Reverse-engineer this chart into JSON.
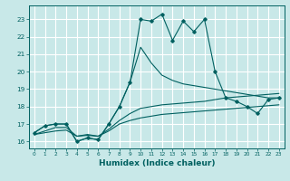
{
  "title": "",
  "xlabel": "Humidex (Indice chaleur)",
  "bg_color": "#c8e8e8",
  "grid_color": "#ffffff",
  "line_color": "#006060",
  "x_data": [
    0,
    1,
    2,
    3,
    4,
    5,
    6,
    7,
    8,
    9,
    10,
    11,
    12,
    13,
    14,
    15,
    16,
    17,
    18,
    19,
    20,
    21,
    22,
    23
  ],
  "main_series": [
    16.5,
    16.9,
    17.0,
    17.0,
    16.0,
    16.2,
    16.1,
    17.0,
    18.0,
    19.4,
    23.0,
    22.9,
    23.3,
    21.8,
    22.9,
    22.3,
    23.0,
    20.0,
    18.5,
    18.3,
    18.0,
    17.6,
    18.4,
    18.5
  ],
  "upper_env": [
    16.5,
    16.9,
    17.0,
    17.0,
    16.0,
    16.2,
    16.1,
    17.0,
    18.0,
    19.4,
    21.4,
    20.5,
    19.8,
    19.5,
    19.3,
    19.2,
    19.1,
    19.0,
    18.9,
    18.8,
    18.7,
    18.6,
    18.5,
    18.5
  ],
  "mid_env": [
    16.4,
    16.6,
    16.8,
    16.8,
    16.3,
    16.4,
    16.3,
    16.7,
    17.2,
    17.6,
    17.9,
    18.0,
    18.1,
    18.15,
    18.2,
    18.25,
    18.3,
    18.4,
    18.5,
    18.55,
    18.6,
    18.65,
    18.7,
    18.75
  ],
  "lower_env": [
    16.4,
    16.5,
    16.6,
    16.65,
    16.3,
    16.35,
    16.3,
    16.6,
    17.0,
    17.2,
    17.35,
    17.45,
    17.55,
    17.6,
    17.65,
    17.7,
    17.75,
    17.8,
    17.85,
    17.9,
    17.95,
    18.0,
    18.05,
    18.1
  ],
  "ylim": [
    15.6,
    23.8
  ],
  "yticks": [
    16,
    17,
    18,
    19,
    20,
    21,
    22,
    23
  ],
  "xticks": [
    0,
    1,
    2,
    3,
    4,
    5,
    6,
    7,
    8,
    9,
    10,
    11,
    12,
    13,
    14,
    15,
    16,
    17,
    18,
    19,
    20,
    21,
    22,
    23
  ],
  "xlabel_fontsize": 6.5,
  "tick_fontsize": 5.0
}
